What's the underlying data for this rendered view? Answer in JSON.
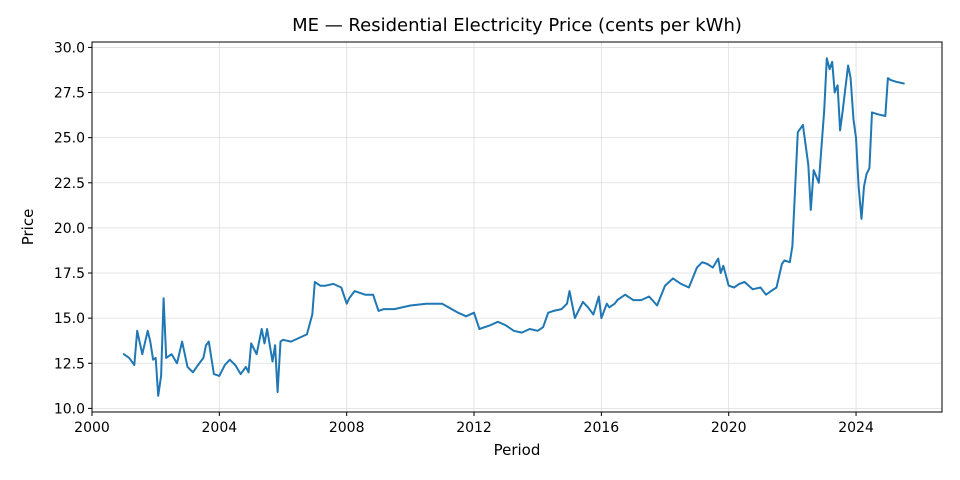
{
  "chart_data": {
    "type": "line",
    "title": "ME — Residential Electricity Price (cents per kWh)",
    "xlabel": "Period",
    "ylabel": "Price",
    "xlim": [
      2000.0,
      2026.7
    ],
    "ylim": [
      9.8,
      30.3
    ],
    "xticks": [
      2000,
      2004,
      2008,
      2012,
      2016,
      2020,
      2024
    ],
    "yticks": [
      10.0,
      12.5,
      15.0,
      17.5,
      20.0,
      22.5,
      25.0,
      27.5,
      30.0
    ],
    "grid": true,
    "series_color": "#1f77b4",
    "series": [
      {
        "x": [
          2001.0,
          2001.17,
          2001.33,
          2001.42,
          2001.58,
          2001.75,
          2001.83,
          2001.92,
          2002.0,
          2002.08,
          2002.17,
          2002.25,
          2002.33,
          2002.5,
          2002.67,
          2002.83,
          2003.0,
          2003.17,
          2003.33,
          2003.5,
          2003.58,
          2003.67,
          2003.83,
          2004.0,
          2004.17,
          2004.33,
          2004.5,
          2004.67,
          2004.83,
          2004.92,
          2005.0,
          2005.17,
          2005.33,
          2005.42,
          2005.5,
          2005.67,
          2005.75,
          2005.83,
          2005.92,
          2006.0,
          2006.25,
          2006.5,
          2006.75,
          2006.92,
          2007.0,
          2007.17,
          2007.33,
          2007.58,
          2007.83,
          2008.0,
          2008.08,
          2008.25,
          2008.58,
          2008.83,
          2009.0,
          2009.17,
          2009.5,
          2010.0,
          2010.5,
          2011.0,
          2011.5,
          2011.75,
          2012.0,
          2012.17,
          2012.33,
          2012.5,
          2012.75,
          2013.0,
          2013.25,
          2013.5,
          2013.75,
          2014.0,
          2014.17,
          2014.33,
          2014.5,
          2014.75,
          2014.92,
          2015.0,
          2015.17,
          2015.25,
          2015.42,
          2015.58,
          2015.75,
          2015.92,
          2016.0,
          2016.17,
          2016.25,
          2016.42,
          2016.5,
          2016.75,
          2017.0,
          2017.25,
          2017.5,
          2017.75,
          2018.0,
          2018.25,
          2018.5,
          2018.75,
          2019.0,
          2019.17,
          2019.33,
          2019.5,
          2019.67,
          2019.75,
          2019.83,
          2020.0,
          2020.17,
          2020.33,
          2020.5,
          2020.75,
          2021.0,
          2021.17,
          2021.33,
          2021.5,
          2021.67,
          2021.75,
          2021.92,
          2022.0,
          2022.17,
          2022.33,
          2022.5,
          2022.58,
          2022.67,
          2022.83,
          2023.0,
          2023.08,
          2023.17,
          2023.25,
          2023.33,
          2023.42,
          2023.5,
          2023.58,
          2023.75,
          2023.83,
          2023.92,
          2024.0,
          2024.08,
          2024.17,
          2024.25,
          2024.33,
          2024.42,
          2024.5,
          2024.67,
          2024.92,
          2025.0,
          2025.08,
          2025.25,
          2025.5
        ],
        "y": [
          13.0,
          12.8,
          12.4,
          14.3,
          13.0,
          14.3,
          13.7,
          12.7,
          12.8,
          10.7,
          11.8,
          16.1,
          12.8,
          13.0,
          12.5,
          13.7,
          12.3,
          12.0,
          12.4,
          12.8,
          13.5,
          13.7,
          11.9,
          11.8,
          12.4,
          12.7,
          12.4,
          11.9,
          12.3,
          12.0,
          13.6,
          13.0,
          14.4,
          13.6,
          14.4,
          12.6,
          13.5,
          10.9,
          13.7,
          13.8,
          13.7,
          13.9,
          14.1,
          15.2,
          17.0,
          16.8,
          16.8,
          16.9,
          16.7,
          15.8,
          16.1,
          16.5,
          16.3,
          16.3,
          15.4,
          15.5,
          15.5,
          15.7,
          15.8,
          15.8,
          15.3,
          15.1,
          15.3,
          14.4,
          14.5,
          14.6,
          14.8,
          14.6,
          14.3,
          14.2,
          14.4,
          14.3,
          14.5,
          15.3,
          15.4,
          15.5,
          15.8,
          16.5,
          15.0,
          15.3,
          15.9,
          15.6,
          15.2,
          16.2,
          15.0,
          15.8,
          15.6,
          15.8,
          16.0,
          16.3,
          16.0,
          16.0,
          16.2,
          15.7,
          16.8,
          17.2,
          16.9,
          16.7,
          17.8,
          18.1,
          18.0,
          17.8,
          18.3,
          17.5,
          17.9,
          16.8,
          16.7,
          16.9,
          17.0,
          16.6,
          16.7,
          16.3,
          16.5,
          16.7,
          18.0,
          18.2,
          18.1,
          19.0,
          25.3,
          25.7,
          23.5,
          21.0,
          23.2,
          22.5,
          26.5,
          29.4,
          28.8,
          29.2,
          27.5,
          27.9,
          25.4,
          26.5,
          29.0,
          28.3,
          26.0,
          25.0,
          22.3,
          20.5,
          22.3,
          23.0,
          23.3,
          26.4,
          26.3,
          26.2,
          28.3,
          28.2,
          28.1,
          28.0
        ]
      }
    ]
  }
}
